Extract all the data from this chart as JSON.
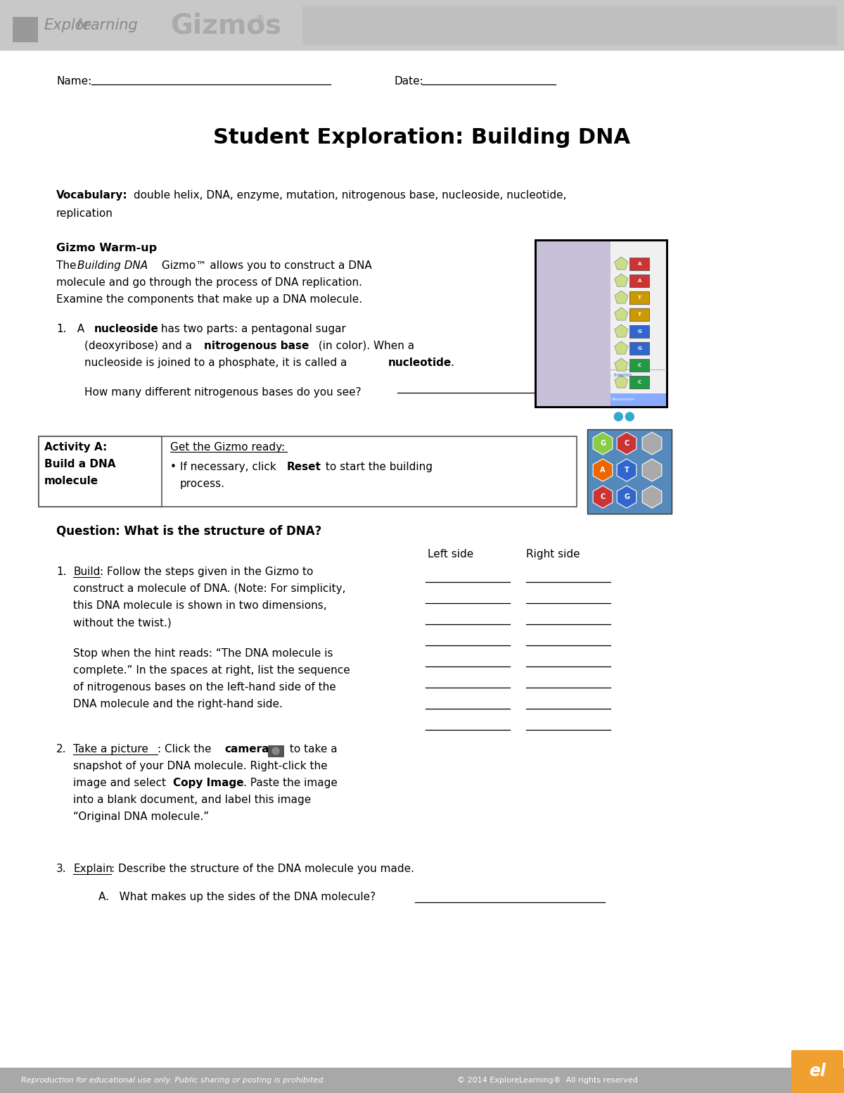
{
  "page_width": 12.0,
  "page_height": 15.53,
  "bg_color": "#ffffff",
  "header_bg": "#c8c8c8",
  "footer_bg": "#a8a8a8",
  "footer_left": "Reproduction for educational use only. Public sharing or posting is prohibited.",
  "footer_right": "© 2014 ExploreLearning®  All rights reserved",
  "title": "Student Exploration: Building DNA",
  "name_label": "Name:",
  "date_label": "Date:",
  "vocab_bold": "Vocabulary:",
  "vocab_rest": " double helix, DNA, enzyme, mutation, nitrogenous base, nucleoside, nucleotide,",
  "vocab_line2": "replication",
  "warmup_header": "Gizmo Warm-up",
  "warmup_line1_pre": "The ",
  "warmup_line1_italic": "Building DNA",
  "warmup_line1_post": " Gizmo™ allows you to construct a DNA",
  "warmup_line2": "molecule and go through the process of DNA replication.",
  "warmup_line3": "Examine the components that make up a DNA molecule.",
  "item1_num": "1.",
  "item1_pre": "  A ",
  "item1_bold1": "nucleoside",
  "item1_post1": " has two parts: a pentagonal sugar",
  "item1_line2_pre": "(deoxyribose) and a ",
  "item1_bold2": "nitrogenous base",
  "item1_line2_post": " (in color). When a",
  "item1_line3_pre": "nucleoside is joined to a phosphate, it is called a ",
  "item1_bold3": "nucleotide",
  "item1_line3_post": ".",
  "item1_q": "How many different nitrogenous bases do you see?",
  "activity_label": "Activity A:",
  "activity_sub": "Build a DNA",
  "activity_sub2": "molecule",
  "activity_get": "Get the Gizmo ready:",
  "activity_bullet1_pre": "If necessary, click ",
  "activity_bullet1_bold": "Reset",
  "activity_bullet1_post": " to start the building",
  "activity_bullet1_line2": "process.",
  "question_header": "Question: What is the structure of DNA?",
  "left_side": "Left side",
  "right_side": "Right side",
  "build_num": "1.",
  "build_word": "Build",
  "build_text1": ": Follow the steps given in the Gizmo to",
  "build_text2": "construct a molecule of DNA. (Note: For simplicity,",
  "build_text3": "this DNA molecule is shown in two dimensions,",
  "build_text4": "without the twist.)",
  "stop_line1": "Stop when the hint reads: “The DNA molecule is",
  "stop_line2": "complete.” In the spaces at right, list the sequence",
  "stop_line3": "of nitrogenous bases on the left-hand side of the",
  "stop_line4": "DNA molecule and the right-hand side.",
  "pic_num": "2.",
  "pic_word": "Take a picture",
  "pic_text1": ": Click the ",
  "pic_bold1": "camera",
  "pic_text2": " to take a",
  "pic_line2": "snapshot of your DNA molecule. Right-click the",
  "pic_line3_pre": "image and select ",
  "pic_line3_bold": "Copy Image",
  "pic_line3_post": ". Paste the image",
  "pic_line4": "into a blank document, and label this image",
  "pic_line5": "“Original DNA molecule.”",
  "explain_num": "3.",
  "explain_word": "Explain",
  "explain_text": ": Describe the structure of the DNA molecule you made.",
  "explain_a": "A.   What makes up the sides of the DNA molecule?",
  "line_color": "#000000",
  "gizmo_img_colors": [
    "#cc3333",
    "#cc3333",
    "#cc9900",
    "#cc9900",
    "#3366cc",
    "#3366cc",
    "#229944",
    "#229944"
  ],
  "activity_hex_colors_left": [
    "#88cc44",
    "#ee6600",
    "#cc3333",
    "#cc3333",
    "#88cc44",
    "#ee6600"
  ],
  "activity_hex_colors_right": [
    "#cc3333",
    "#3366cc",
    "#3366cc",
    "#229944",
    "#cc3333",
    "#3366cc"
  ],
  "footer_logo_color": "#f0a030"
}
